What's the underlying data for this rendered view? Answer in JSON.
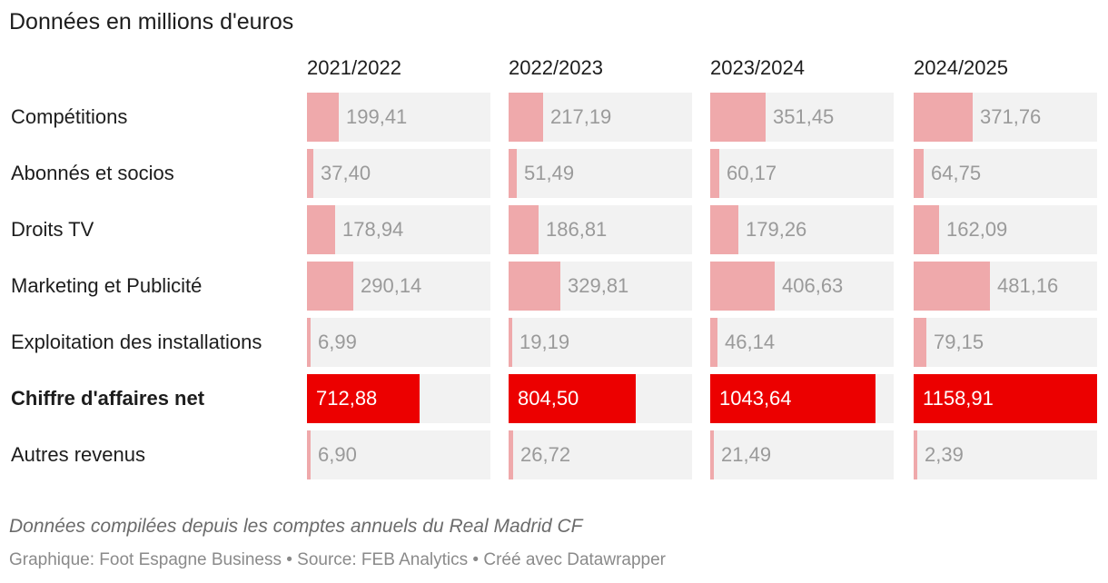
{
  "title": "Données en millions d'euros",
  "chart_data": {
    "type": "table",
    "title": "Données en millions d'euros",
    "columns": [
      "2021/2022",
      "2022/2023",
      "2023/2024",
      "2024/2025"
    ],
    "rows": [
      {
        "label": "Compétitions",
        "values": [
          199.41,
          217.19,
          351.45,
          371.76
        ],
        "display": [
          "199,41",
          "217,19",
          "351,45",
          "371,76"
        ],
        "highlight": false
      },
      {
        "label": "Abonnés et socios",
        "values": [
          37.4,
          51.49,
          60.17,
          64.75
        ],
        "display": [
          "37,40",
          "51,49",
          "60,17",
          "64,75"
        ],
        "highlight": false
      },
      {
        "label": "Droits TV",
        "values": [
          178.94,
          186.81,
          179.26,
          162.09
        ],
        "display": [
          "178,94",
          "186,81",
          "179,26",
          "162,09"
        ],
        "highlight": false
      },
      {
        "label": "Marketing et Publicité",
        "values": [
          290.14,
          329.81,
          406.63,
          481.16
        ],
        "display": [
          "290,14",
          "329,81",
          "406,63",
          "481,16"
        ],
        "highlight": false
      },
      {
        "label": "Exploitation des installations",
        "values": [
          6.99,
          19.19,
          46.14,
          79.15
        ],
        "display": [
          "6,99",
          "19,19",
          "46,14",
          "79,15"
        ],
        "highlight": false
      },
      {
        "label": "Chiffre d'affaires net",
        "values": [
          712.88,
          804.5,
          1043.64,
          1158.91
        ],
        "display": [
          "712,88",
          "804,50",
          "1043,64",
          "1158,91"
        ],
        "highlight": true
      },
      {
        "label": "Autres revenus",
        "values": [
          6.9,
          26.72,
          21.49,
          2.39
        ],
        "display": [
          "6,90",
          "26,72",
          "21,49",
          "2,39"
        ],
        "highlight": false
      }
    ],
    "scale_max": 1158.91
  },
  "colors": {
    "bar": "#efa9ab",
    "bar_highlight": "#ec0000",
    "cell_background": "#f2f2f2"
  },
  "caption": "Données compilées depuis les comptes annuels du Real Madrid CF",
  "footer": "Graphique: Foot Espagne Business • Source: FEB Analytics • Créé avec Datawrapper"
}
